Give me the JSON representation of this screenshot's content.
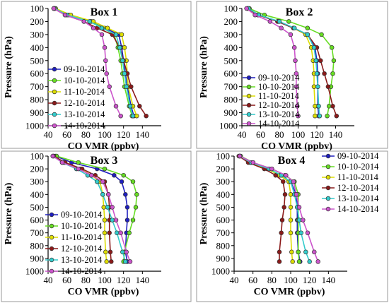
{
  "chart_data": [
    {
      "type": "line",
      "title": "Box 1",
      "xlabel": "CO VMR (ppbv)",
      "ylabel": "Pressure (hPa)",
      "xlim": [
        40,
        160
      ],
      "ylim": [
        100,
        1000
      ],
      "y_inverted": true,
      "x_ticks": [
        "40",
        "60",
        "80",
        "100",
        "120",
        "140"
      ],
      "y_ticks": [
        "100",
        "200",
        "300",
        "400",
        "500",
        "600",
        "700",
        "800",
        "900",
        "1000"
      ],
      "legend_position": "left",
      "series": [
        {
          "name": "09-10-2014",
          "color": "#1f1fbf",
          "x": [
            47,
            60,
            85,
            100,
            115,
            118,
            120,
            122,
            124,
            128,
            131
          ],
          "y": [
            100,
            150,
            200,
            250,
            300,
            400,
            500,
            600,
            700,
            850,
            925
          ]
        },
        {
          "name": "10-10-2014",
          "color": "#66dd22",
          "x": [
            46,
            62,
            86,
            98,
            110,
            114,
            117,
            119,
            121,
            126,
            129
          ],
          "y": [
            100,
            150,
            200,
            250,
            300,
            400,
            500,
            600,
            700,
            850,
            925
          ]
        },
        {
          "name": "11-10-2014",
          "color": "#dddd00",
          "x": [
            48,
            64,
            88,
            103,
            118,
            121,
            123,
            124,
            125,
            130,
            134
          ],
          "y": [
            100,
            150,
            200,
            250,
            300,
            400,
            500,
            600,
            700,
            850,
            925
          ]
        },
        {
          "name": "12-10-2014",
          "color": "#8b1a1a",
          "x": [
            46,
            58,
            78,
            92,
            108,
            116,
            120,
            124,
            128,
            137,
            144
          ],
          "y": [
            100,
            150,
            200,
            250,
            300,
            400,
            500,
            600,
            700,
            850,
            925
          ]
        },
        {
          "name": "13-10-2014",
          "color": "#33cccc",
          "x": [
            47,
            60,
            84,
            97,
            112,
            116,
            119,
            121,
            123,
            127,
            130
          ],
          "y": [
            100,
            150,
            200,
            250,
            300,
            400,
            500,
            600,
            700,
            850,
            925
          ]
        },
        {
          "name": "14-10-2014",
          "color": "#cc55cc",
          "x": [
            46,
            58,
            78,
            88,
            97,
            100,
            101,
            102,
            105,
            112,
            117
          ],
          "y": [
            100,
            150,
            200,
            250,
            300,
            400,
            500,
            600,
            700,
            850,
            925
          ]
        }
      ]
    },
    {
      "type": "line",
      "title": "Box 2",
      "xlabel": "CO VMR (ppbv)",
      "ylabel": "Pressure (hPa)",
      "xlim": [
        40,
        160
      ],
      "ylim": [
        100,
        1000
      ],
      "y_inverted": true,
      "x_ticks": [
        "40",
        "60",
        "80",
        "100",
        "120",
        "140"
      ],
      "y_ticks": [
        "100",
        "200",
        "300",
        "400",
        "500",
        "600",
        "700",
        "800",
        "900",
        "1000"
      ],
      "legend_position": "bottom-left",
      "series": [
        {
          "name": "09-10-2014",
          "color": "#1f1fbf",
          "x": [
            47,
            58,
            78,
            95,
            110,
            118,
            120,
            121,
            121,
            121,
            122
          ],
          "y": [
            100,
            150,
            200,
            250,
            300,
            400,
            500,
            600,
            700,
            850,
            925
          ]
        },
        {
          "name": "10-10-2014",
          "color": "#66dd22",
          "x": [
            48,
            64,
            90,
            110,
            125,
            136,
            138,
            137,
            135,
            133,
            131
          ],
          "y": [
            100,
            150,
            200,
            250,
            300,
            400,
            500,
            600,
            700,
            850,
            925
          ]
        },
        {
          "name": "11-10-2014",
          "color": "#dddd00",
          "x": [
            46,
            58,
            79,
            95,
            108,
            114,
            116,
            117,
            117,
            118,
            118
          ],
          "y": [
            100,
            150,
            200,
            250,
            300,
            400,
            500,
            600,
            700,
            850,
            925
          ]
        },
        {
          "name": "12-10-2014",
          "color": "#8b1a1a",
          "x": [
            46,
            57,
            78,
            95,
            110,
            120,
            124,
            128,
            132,
            137,
            141
          ],
          "y": [
            100,
            150,
            200,
            250,
            300,
            400,
            500,
            600,
            700,
            850,
            925
          ]
        },
        {
          "name": "13-10-2014",
          "color": "#33cccc",
          "x": [
            47,
            58,
            80,
            96,
            110,
            117,
            119,
            120,
            121,
            122,
            123
          ],
          "y": [
            100,
            150,
            200,
            250,
            300,
            400,
            500,
            600,
            700,
            850,
            925
          ]
        },
        {
          "name": "14-10-2014",
          "color": "#cc55cc",
          "x": [
            45,
            54,
            70,
            82,
            92,
            96,
            97,
            98,
            98,
            99,
            100
          ],
          "y": [
            100,
            150,
            200,
            250,
            300,
            400,
            500,
            600,
            700,
            850,
            925
          ]
        }
      ]
    },
    {
      "type": "line",
      "title": "Box 3",
      "xlabel": "CO VMR (ppbv)",
      "ylabel": "Pressure (hPa)",
      "xlim": [
        40,
        160
      ],
      "ylim": [
        100,
        1000
      ],
      "y_inverted": true,
      "x_ticks": [
        "40",
        "60",
        "80",
        "100",
        "120",
        "140"
      ],
      "y_ticks": [
        "100",
        "200",
        "300",
        "400",
        "500",
        "600",
        "700",
        "800",
        "900",
        "1000"
      ],
      "legend_position": "left",
      "series": [
        {
          "name": "09-10-2014",
          "color": "#1f1fbf",
          "x": [
            48,
            65,
            92,
            110,
            118,
            122,
            124,
            124,
            123,
            122,
            124
          ],
          "y": [
            100,
            150,
            200,
            250,
            300,
            400,
            500,
            600,
            700,
            850,
            925
          ]
        },
        {
          "name": "10-10-2014",
          "color": "#66dd22",
          "x": [
            49,
            72,
            100,
            120,
            130,
            134,
            133,
            130,
            126,
            121,
            120
          ],
          "y": [
            100,
            150,
            200,
            250,
            300,
            400,
            500,
            600,
            700,
            850,
            925
          ]
        },
        {
          "name": "11-10-2014",
          "color": "#dddd00",
          "x": [
            46,
            57,
            74,
            86,
            95,
            98,
            99,
            100,
            100,
            101,
            102
          ],
          "y": [
            100,
            150,
            200,
            250,
            300,
            400,
            500,
            600,
            700,
            850,
            925
          ]
        },
        {
          "name": "12-10-2014",
          "color": "#8b1a1a",
          "x": [
            46,
            58,
            76,
            90,
            100,
            104,
            105,
            105,
            105,
            106,
            107
          ],
          "y": [
            100,
            150,
            200,
            250,
            300,
            400,
            500,
            600,
            700,
            850,
            925
          ]
        },
        {
          "name": "13-10-2014",
          "color": "#33cccc",
          "x": [
            45,
            55,
            70,
            82,
            92,
            98,
            103,
            108,
            113,
            119,
            122
          ],
          "y": [
            100,
            150,
            200,
            250,
            300,
            400,
            500,
            600,
            700,
            850,
            925
          ]
        },
        {
          "name": "14-10-2014",
          "color": "#cc55cc",
          "x": [
            45,
            55,
            72,
            86,
            98,
            104,
            108,
            112,
            117,
            123,
            127
          ],
          "y": [
            100,
            150,
            200,
            250,
            300,
            400,
            500,
            600,
            700,
            850,
            925
          ]
        }
      ]
    },
    {
      "type": "line",
      "title": "Box 4",
      "xlabel": "CO VMR (ppbv)",
      "ylabel": "Pressure (hPa)",
      "xlim": [
        40,
        160
      ],
      "ylim": [
        100,
        1000
      ],
      "y_inverted": true,
      "x_ticks": [
        "40",
        "60",
        "80",
        "100",
        "120",
        "140"
      ],
      "y_ticks": [
        "100",
        "200",
        "300",
        "400",
        "500",
        "600",
        "700",
        "800",
        "900",
        "1000"
      ],
      "legend_position": "top-right",
      "series": [
        {
          "name": "09-10-2014",
          "color": "#1f1fbf",
          "x": [
            46,
            58,
            76,
            90,
            100,
            106,
            107,
            107,
            107,
            108,
            110
          ],
          "y": [
            100,
            150,
            200,
            250,
            300,
            400,
            500,
            600,
            700,
            850,
            925
          ]
        },
        {
          "name": "10-10-2014",
          "color": "#66dd22",
          "x": [
            47,
            60,
            80,
            94,
            104,
            108,
            108,
            108,
            108,
            108,
            109
          ],
          "y": [
            100,
            150,
            200,
            250,
            300,
            400,
            500,
            600,
            700,
            850,
            925
          ]
        },
        {
          "name": "11-10-2014",
          "color": "#dddd00",
          "x": [
            46,
            57,
            75,
            88,
            98,
            100,
            100,
            100,
            100,
            101,
            102
          ],
          "y": [
            100,
            150,
            200,
            250,
            300,
            400,
            500,
            600,
            700,
            850,
            925
          ]
        },
        {
          "name": "12-10-2014",
          "color": "#8b1a1a",
          "x": [
            45,
            55,
            72,
            84,
            92,
            94,
            93,
            91,
            90,
            88,
            88
          ],
          "y": [
            100,
            150,
            200,
            250,
            300,
            400,
            500,
            600,
            700,
            850,
            925
          ]
        },
        {
          "name": "13-10-2014",
          "color": "#33cccc",
          "x": [
            46,
            58,
            77,
            90,
            100,
            104,
            107,
            109,
            111,
            116,
            120
          ],
          "y": [
            100,
            150,
            200,
            250,
            300,
            400,
            500,
            600,
            700,
            850,
            925
          ]
        },
        {
          "name": "14-10-2014",
          "color": "#cc55cc",
          "x": [
            46,
            60,
            80,
            95,
            103,
            106,
            109,
            113,
            118,
            125,
            129
          ],
          "y": [
            100,
            150,
            200,
            250,
            300,
            400,
            500,
            600,
            700,
            850,
            925
          ]
        }
      ]
    }
  ]
}
